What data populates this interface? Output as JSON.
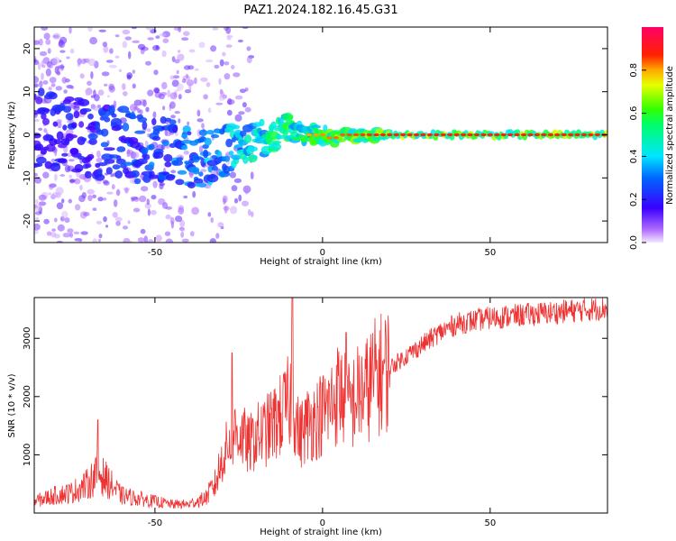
{
  "figure": {
    "title": "PAZ1.2024.182.16.45.G31"
  },
  "chart_data": [
    {
      "type": "heatmap",
      "name": "spectrogram",
      "title": "PAZ1.2024.182.16.45.G31",
      "xlabel": "Height of straight line (km)",
      "ylabel": "Frequency (Hz)",
      "xlim": [
        -86,
        85
      ],
      "ylim": [
        -25,
        25
      ],
      "x_ticks": [
        -50,
        0,
        50
      ],
      "y_ticks": [
        -20,
        -10,
        0,
        10,
        20
      ],
      "colorbar": {
        "label": "Normalized spectral amplitude",
        "range": [
          0,
          1
        ],
        "ticks": [
          0.0,
          0.2,
          0.4,
          0.6,
          0.8
        ],
        "colormap": "gist_rainbow_r-like (purple→blue→cyan→green→yellow→red→magenta)"
      },
      "ridge_frequency_hz": {
        "x": [
          -84,
          -80,
          -75,
          -70,
          -65,
          -60,
          -55,
          -50,
          -45,
          -40,
          -35,
          -30,
          -25,
          -22,
          -18,
          -14,
          -11,
          -8,
          -5,
          0,
          3,
          6,
          10,
          15,
          20,
          25,
          30,
          85
        ],
        "y": [
          2,
          1,
          0,
          -1,
          -2,
          -2,
          -3,
          -3,
          -4,
          -5,
          -6,
          -4,
          -3,
          -2,
          -1,
          0,
          2,
          1,
          0,
          0,
          -1,
          0,
          0,
          0,
          0,
          0,
          0,
          0
        ]
      },
      "amplitude_profile": {
        "x": [
          -86,
          -60,
          -40,
          -30,
          -22,
          -15,
          -5,
          5,
          20,
          30,
          85
        ],
        "y": [
          0.3,
          0.4,
          0.5,
          0.6,
          0.7,
          0.8,
          0.9,
          0.95,
          1.0,
          1.0,
          1.0
        ]
      },
      "grid": false
    },
    {
      "type": "line",
      "name": "snr",
      "title": "",
      "xlabel": "Height of straight line (km)",
      "ylabel": "SNR (10 * v/v)",
      "xlim": [
        -86,
        85
      ],
      "ylim": [
        0,
        3700
      ],
      "x_ticks": [
        -50,
        0,
        50
      ],
      "y_ticks": [
        1000,
        2000,
        3000
      ],
      "color": "#ee3333",
      "grid": false,
      "series": [
        {
          "x": [
            -86,
            -80,
            -75,
            -70,
            -67,
            -65,
            -60,
            -55,
            -50,
            -45,
            -40,
            -35,
            -32,
            -30,
            -27,
            -25,
            -22,
            -20,
            -17,
            -15,
            -12,
            -10,
            -9,
            -7,
            -5,
            -3,
            0,
            3,
            5,
            8,
            10,
            13,
            15,
            20,
            25,
            30,
            35,
            40,
            50,
            60,
            70,
            80,
            85
          ],
          "y": [
            200,
            300,
            350,
            500,
            700,
            600,
            300,
            250,
            200,
            150,
            150,
            250,
            500,
            900,
            1350,
            1400,
            1150,
            1300,
            1400,
            1500,
            1700,
            1900,
            2000,
            1300,
            1500,
            1600,
            1700,
            1900,
            2100,
            1800,
            2000,
            2100,
            2300,
            2500,
            2700,
            2900,
            3100,
            3250,
            3350,
            3400,
            3450,
            3500,
            3520
          ]
        }
      ],
      "spikes": [
        {
          "x": -67,
          "y": 1600
        },
        {
          "x": -27,
          "y": 2750
        },
        {
          "x": -9,
          "y": 3700
        },
        {
          "x": 7,
          "y": 3100
        }
      ]
    }
  ]
}
